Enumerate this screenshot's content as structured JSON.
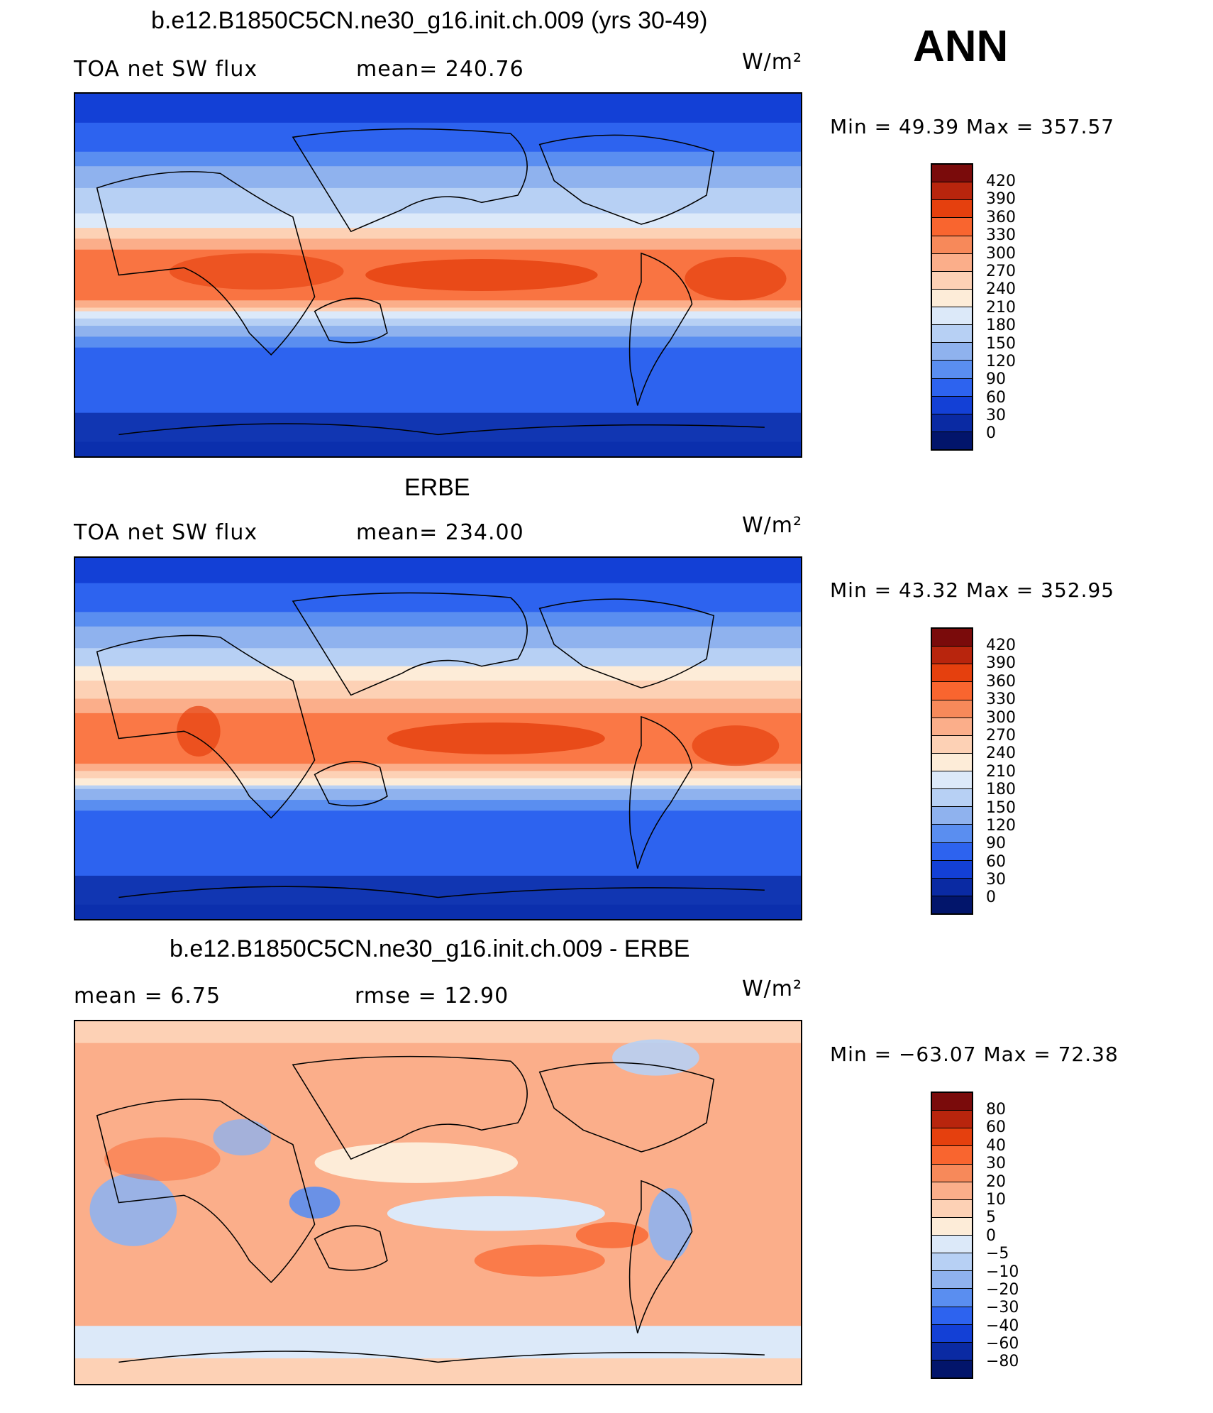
{
  "season": "ANN",
  "panels": [
    {
      "title": "b.e12.B1850C5CN.ne30_g16.init.ch.009 (yrs 30-49)",
      "left_label": "TOA net SW flux",
      "center_label": "mean= 240.76",
      "units": "W/m²",
      "minmax": "Min =   49.39  Max  =  357.57",
      "colorbar": {
        "labels": [
          "420",
          "390",
          "360",
          "330",
          "300",
          "270",
          "240",
          "210",
          "180",
          "150",
          "120",
          "90",
          "60",
          "30",
          "0"
        ],
        "colors": [
          "#7a0b0b",
          "#b8250d",
          "#e5400e",
          "#f9652f",
          "#f7895a",
          "#fbae8a",
          "#fdd1b5",
          "#fdecd8",
          "#dce9f9",
          "#b7d0f4",
          "#8fb2ee",
          "#5a8ef0",
          "#2d63ef",
          "#1340d6",
          "#0a2aa3",
          "#02156b"
        ]
      }
    },
    {
      "title": "ERBE",
      "left_label": "TOA net SW flux",
      "center_label": "mean= 234.00",
      "units": "W/m²",
      "minmax": "Min =   43.32  Max  =  352.95",
      "colorbar": {
        "labels": [
          "420",
          "390",
          "360",
          "330",
          "300",
          "270",
          "240",
          "210",
          "180",
          "150",
          "120",
          "90",
          "60",
          "30",
          "0"
        ],
        "colors": [
          "#7a0b0b",
          "#b8250d",
          "#e5400e",
          "#f9652f",
          "#f7895a",
          "#fbae8a",
          "#fdd1b5",
          "#fdecd8",
          "#dce9f9",
          "#b7d0f4",
          "#8fb2ee",
          "#5a8ef0",
          "#2d63ef",
          "#1340d6",
          "#0a2aa3",
          "#02156b"
        ]
      }
    },
    {
      "title": "b.e12.B1850C5CN.ne30_g16.init.ch.009 - ERBE",
      "left_label": "mean =     6.75",
      "center_label": "rmse =    12.90",
      "units": "W/m²",
      "minmax": "Min  = −63.07  Max  =    72.38",
      "colorbar": {
        "labels": [
          "80",
          "60",
          "40",
          "30",
          "20",
          "10",
          "5",
          "0",
          "−5",
          "−10",
          "−20",
          "−30",
          "−40",
          "−60",
          "−80"
        ],
        "colors": [
          "#7a0b0b",
          "#b8250d",
          "#e5400e",
          "#f9652f",
          "#f7895a",
          "#fbae8a",
          "#fdd1b5",
          "#fdecd8",
          "#dce9f9",
          "#b7d0f4",
          "#8fb2ee",
          "#5a8ef0",
          "#2d63ef",
          "#1340d6",
          "#0a2aa3",
          "#02156b"
        ]
      }
    }
  ],
  "chart_data": {
    "type": "heatmap",
    "variable": "TOA net SW flux",
    "units": "W/m²",
    "maps": [
      {
        "name": "b.e12.B1850C5CN.ne30_g16.init.ch.009 (yrs 30-49)",
        "mean": 240.76,
        "min": 49.39,
        "max": 357.57,
        "levels": [
          0,
          30,
          60,
          90,
          120,
          150,
          180,
          210,
          240,
          270,
          300,
          330,
          360,
          390,
          420
        ]
      },
      {
        "name": "ERBE",
        "mean": 234.0,
        "min": 43.32,
        "max": 352.95,
        "levels": [
          0,
          30,
          60,
          90,
          120,
          150,
          180,
          210,
          240,
          270,
          300,
          330,
          360,
          390,
          420
        ]
      },
      {
        "name": "b.e12.B1850C5CN.ne30_g16.init.ch.009 - ERBE",
        "mean": 6.75,
        "rmse": 12.9,
        "min": -63.07,
        "max": 72.38,
        "levels": [
          -80,
          -60,
          -40,
          -30,
          -20,
          -10,
          -5,
          0,
          5,
          10,
          20,
          30,
          40,
          60,
          80
        ]
      }
    ]
  }
}
